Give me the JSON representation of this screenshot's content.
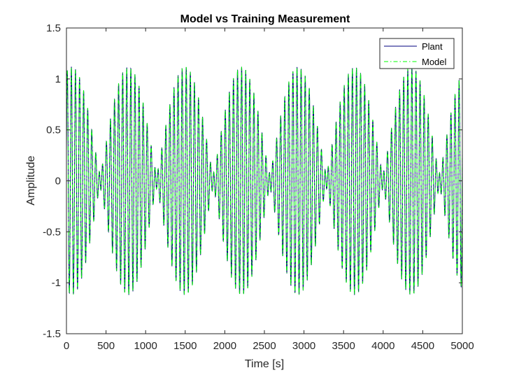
{
  "chart_data": {
    "type": "line",
    "title": "Model vs Training Measurement",
    "xlabel": "Time [s]",
    "ylabel": "Amplitude",
    "xlim": [
      0,
      5000
    ],
    "ylim": [
      -1.5,
      1.5
    ],
    "x_ticks": [
      "0",
      "500",
      "1000",
      "1500",
      "2000",
      "2500",
      "3000",
      "3500",
      "4000",
      "4500",
      "5000"
    ],
    "y_ticks": [
      "1.5",
      "1",
      "0.5",
      "0",
      "-0.5",
      "-1",
      "-1.5"
    ],
    "grid": false,
    "legend_position": "top-right",
    "series": [
      {
        "name": "Plant",
        "color": "#00007f",
        "style": "solid",
        "description_values": {
          "envelope": [
            -1.12,
            1.12
          ],
          "dominant_cycles_over_range": 100,
          "components": [
            {
              "amplitude": 0.6,
              "cycles": 100
            },
            {
              "amplitude": 0.52,
              "cycles": 93
            }
          ]
        }
      },
      {
        "name": "Model",
        "color": "#00ff00",
        "style": "dash-dot",
        "description_values": {
          "envelope": [
            -1.12,
            1.12
          ],
          "dominant_cycles_over_range": 100,
          "components": [
            {
              "amplitude": 0.6,
              "cycles": 100
            },
            {
              "amplitude": 0.52,
              "cycles": 93
            }
          ]
        }
      }
    ]
  }
}
